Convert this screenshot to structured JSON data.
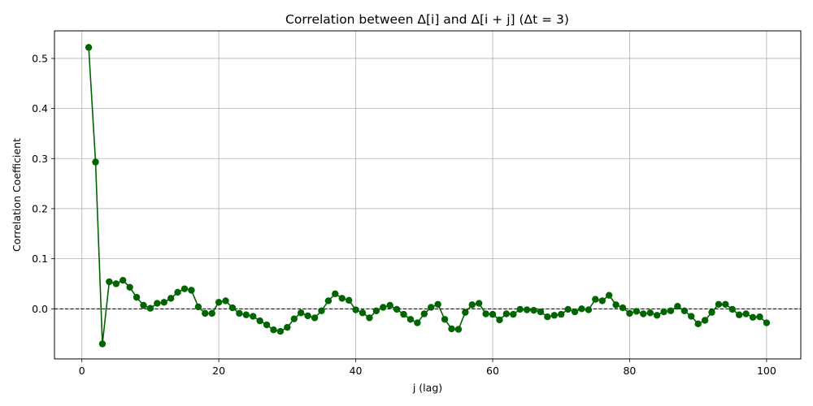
{
  "chart_data": {
    "type": "line",
    "title": "Correlation between Δ[i] and Δ[i + j] (Δt = 3)",
    "xlabel": "j (lag)",
    "ylabel": "Correlation Coefficient",
    "xlim": [
      -4,
      105
    ],
    "ylim": [
      -0.1,
      0.555
    ],
    "xticks": [
      0,
      20,
      40,
      60,
      80,
      100
    ],
    "yticks": [
      0.0,
      0.1,
      0.2,
      0.3,
      0.4,
      0.5
    ],
    "xtick_labels": [
      "0",
      "20",
      "40",
      "60",
      "80",
      "100"
    ],
    "ytick_labels": [
      "0.0",
      "0.1",
      "0.2",
      "0.3",
      "0.4",
      "0.5"
    ],
    "grid": true,
    "reference_line": {
      "y": 0.0,
      "style": "dashed",
      "color": "#000000"
    },
    "colors": {
      "series": "#006400"
    },
    "series": [
      {
        "marker": "circle",
        "x": [
          1,
          2,
          3,
          4,
          5,
          6,
          7,
          8,
          9,
          10,
          11,
          12,
          13,
          14,
          15,
          16,
          17,
          18,
          19,
          20,
          21,
          22,
          23,
          24,
          25,
          26,
          27,
          28,
          29,
          30,
          31,
          32,
          33,
          34,
          35,
          36,
          37,
          38,
          39,
          40,
          41,
          42,
          43,
          44,
          45,
          46,
          47,
          48,
          49,
          50,
          51,
          52,
          53,
          54,
          55,
          56,
          57,
          58,
          59,
          60,
          61,
          62,
          63,
          64,
          65,
          66,
          67,
          68,
          69,
          70,
          71,
          72,
          73,
          74,
          75,
          76,
          77,
          78,
          79,
          80,
          81,
          82,
          83,
          84,
          85,
          86,
          87,
          88,
          89,
          90,
          91,
          92,
          93,
          94,
          95,
          96,
          97,
          98,
          99,
          100
        ],
        "values": [
          0.522,
          0.293,
          -0.07,
          0.054,
          0.05,
          0.057,
          0.043,
          0.023,
          0.007,
          0.001,
          0.011,
          0.013,
          0.021,
          0.033,
          0.04,
          0.037,
          0.004,
          -0.009,
          -0.009,
          0.013,
          0.016,
          0.002,
          -0.009,
          -0.012,
          -0.015,
          -0.024,
          -0.032,
          -0.042,
          -0.045,
          -0.037,
          -0.02,
          -0.008,
          -0.014,
          -0.018,
          -0.004,
          0.016,
          0.03,
          0.021,
          0.017,
          -0.002,
          -0.008,
          -0.018,
          -0.004,
          0.003,
          0.007,
          -0.001,
          -0.011,
          -0.021,
          -0.028,
          -0.01,
          0.003,
          0.009,
          -0.021,
          -0.04,
          -0.041,
          -0.007,
          0.008,
          0.011,
          -0.01,
          -0.011,
          -0.022,
          -0.01,
          -0.011,
          -0.001,
          -0.002,
          -0.003,
          -0.006,
          -0.016,
          -0.013,
          -0.011,
          -0.001,
          -0.006,
          0.0,
          -0.002,
          0.019,
          0.016,
          0.027,
          0.008,
          0.002,
          -0.009,
          -0.005,
          -0.01,
          -0.008,
          -0.013,
          -0.006,
          -0.004,
          0.005,
          -0.004,
          -0.015,
          -0.03,
          -0.023,
          -0.007,
          0.009,
          0.009,
          -0.001,
          -0.012,
          -0.01,
          -0.017,
          -0.016,
          -0.028
        ]
      }
    ]
  }
}
